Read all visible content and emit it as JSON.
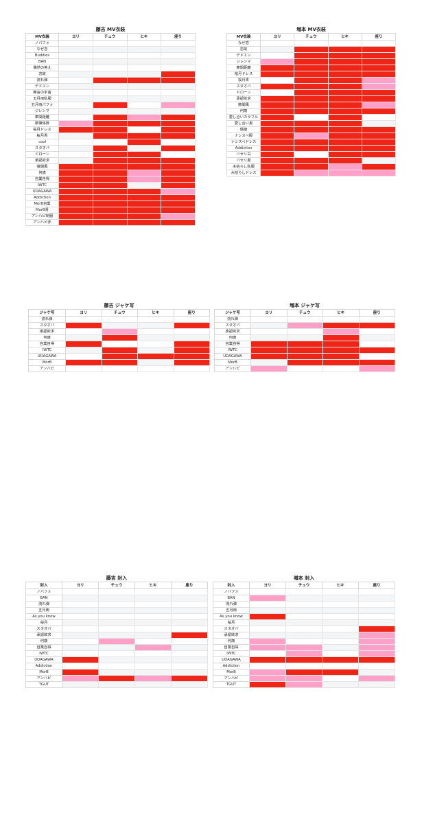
{
  "colors": {
    "none": "#ffffff",
    "stripe": "#f4f5f6",
    "light": "#ffa0c9",
    "strong": "#ee2517"
  },
  "tables": [
    {
      "title": "藤吉 MV衣装",
      "headers": [
        "MV衣装",
        "ヨリ",
        "チュウ",
        "ヒキ",
        "座り"
      ],
      "rows": [
        {
          "label": "ノバフォ",
          "cells": [
            0,
            0,
            0,
            0
          ]
        },
        {
          "label": "なぜ恋",
          "cells": [
            0,
            0,
            0,
            0
          ]
        },
        {
          "label": "Buddies",
          "cells": [
            0,
            0,
            0,
            0
          ]
        },
        {
          "label": "BAN",
          "cells": [
            0,
            0,
            0,
            0
          ]
        },
        {
          "label": "偶然の答え",
          "cells": [
            0,
            0,
            0,
            0
          ]
        },
        {
          "label": "恋故",
          "cells": [
            0,
            0,
            0,
            2
          ]
        },
        {
          "label": "流れ弾",
          "cells": [
            0,
            2,
            2,
            2
          ]
        },
        {
          "label": "デドエン",
          "cells": [
            0,
            0,
            0,
            0
          ]
        },
        {
          "label": "無言の宇宙",
          "cells": [
            0,
            0,
            0,
            0
          ]
        },
        {
          "label": "五月雨私服",
          "cells": [
            0,
            0,
            0,
            0
          ]
        },
        {
          "label": "五月雨パフォ",
          "cells": [
            0,
            2,
            0,
            1
          ]
        },
        {
          "label": "ジレンマ",
          "cells": [
            0,
            0,
            0,
            0
          ]
        },
        {
          "label": "車間距離",
          "cells": [
            0,
            2,
            1,
            2
          ]
        },
        {
          "label": "摩擦係数",
          "cells": [
            1,
            2,
            2,
            2
          ]
        },
        {
          "label": "桜月ドレス",
          "cells": [
            2,
            2,
            0,
            2
          ]
        },
        {
          "label": "桜月青",
          "cells": [
            0,
            2,
            2,
            2
          ]
        },
        {
          "label": "cool",
          "cells": [
            0,
            0,
            2,
            0
          ]
        },
        {
          "label": "スタオバ",
          "cells": [
            0,
            2,
            0,
            2
          ]
        },
        {
          "label": "ドローン",
          "cells": [
            0,
            2,
            2,
            0
          ]
        },
        {
          "label": "承認欲求",
          "cells": [
            0,
            2,
            2,
            2
          ]
        },
        {
          "label": "徹閣風",
          "cells": [
            2,
            2,
            2,
            2
          ]
        },
        {
          "label": "何歳",
          "cells": [
            2,
            2,
            1,
            2
          ]
        },
        {
          "label": "自業自得",
          "cells": [
            2,
            2,
            1,
            2
          ]
        },
        {
          "label": "IWTC",
          "cells": [
            2,
            2,
            0,
            2
          ]
        },
        {
          "label": "UDAGAWA",
          "cells": [
            2,
            2,
            2,
            1
          ]
        },
        {
          "label": "Addiction",
          "cells": [
            2,
            2,
            2,
            2
          ]
        },
        {
          "label": "MorB自業",
          "cells": [
            2,
            2,
            2,
            2
          ]
        },
        {
          "label": "MorB青",
          "cells": [
            2,
            2,
            2,
            2
          ]
        },
        {
          "label": "アンハピ制服",
          "cells": [
            2,
            2,
            2,
            1
          ]
        },
        {
          "label": "アンハピ赤",
          "cells": [
            2,
            2,
            2,
            2
          ]
        }
      ]
    },
    {
      "title": "増本 MV衣装",
      "headers": [
        "MV衣装",
        "ヨリ",
        "チュウ",
        "ヒキ",
        "座り"
      ],
      "rows": [
        {
          "label": "なぜ恋",
          "cells": [
            0,
            0,
            0,
            0
          ]
        },
        {
          "label": "恋故",
          "cells": [
            0,
            2,
            2,
            2
          ]
        },
        {
          "label": "デドエン",
          "cells": [
            0,
            2,
            2,
            2
          ]
        },
        {
          "label": "ジレンマ",
          "cells": [
            1,
            2,
            2,
            2
          ]
        },
        {
          "label": "車間距離",
          "cells": [
            2,
            2,
            2,
            2
          ]
        },
        {
          "label": "桜月ドレス",
          "cells": [
            2,
            2,
            2,
            2
          ]
        },
        {
          "label": "桜月青",
          "cells": [
            0,
            2,
            2,
            1
          ]
        },
        {
          "label": "スタオバ",
          "cells": [
            2,
            2,
            2,
            1
          ]
        },
        {
          "label": "ドローン",
          "cells": [
            0,
            2,
            2,
            2
          ]
        },
        {
          "label": "承認欲求",
          "cells": [
            2,
            2,
            2,
            2
          ]
        },
        {
          "label": "徹閣風",
          "cells": [
            2,
            2,
            2,
            1
          ]
        },
        {
          "label": "何歳",
          "cells": [
            2,
            2,
            2,
            2
          ]
        },
        {
          "label": "愛し合いカラフル",
          "cells": [
            2,
            0,
            2,
            0
          ]
        },
        {
          "label": "愛し合い黒",
          "cells": [
            2,
            2,
            2,
            0
          ]
        },
        {
          "label": "償値",
          "cells": [
            2,
            2,
            2,
            2
          ]
        },
        {
          "label": "ナシスペ服",
          "cells": [
            2,
            1,
            2,
            2
          ]
        },
        {
          "label": "ナシスペドレス",
          "cells": [
            2,
            2,
            2,
            2
          ]
        },
        {
          "label": "Addiction",
          "cells": [
            2,
            2,
            2,
            2
          ]
        },
        {
          "label": "バセリ白",
          "cells": [
            2,
            0,
            2,
            2
          ]
        },
        {
          "label": "バセリ黒",
          "cells": [
            2,
            2,
            2,
            0
          ]
        },
        {
          "label": "木枯らし私服",
          "cells": [
            2,
            2,
            1,
            2
          ]
        },
        {
          "label": "木枯らしドレス",
          "cells": [
            2,
            1,
            1,
            1
          ]
        }
      ]
    },
    {
      "title": "藤吉 ジャケ写",
      "headers": [
        "ジャケ写",
        "ヨリ",
        "チュウ",
        "ヒキ",
        "座り"
      ],
      "rows": [
        {
          "label": "流れ弾",
          "cells": [
            0,
            0,
            0,
            0
          ]
        },
        {
          "label": "スタオバ",
          "cells": [
            2,
            0,
            0,
            2
          ]
        },
        {
          "label": "承認欲求",
          "cells": [
            0,
            1,
            0,
            0
          ]
        },
        {
          "label": "何歳",
          "cells": [
            0,
            2,
            0,
            0
          ]
        },
        {
          "label": "自業自得",
          "cells": [
            2,
            0,
            0,
            2
          ]
        },
        {
          "label": "IWTC",
          "cells": [
            0,
            2,
            0,
            2
          ]
        },
        {
          "label": "UDAGAWA",
          "cells": [
            0,
            2,
            2,
            2
          ]
        },
        {
          "label": "MorB",
          "cells": [
            2,
            2,
            0,
            2
          ]
        },
        {
          "label": "アンハピ",
          "cells": [
            0,
            0,
            0,
            0
          ]
        }
      ]
    },
    {
      "title": "増本 ジャケ写",
      "headers": [
        "ジャケ写",
        "ヨリ",
        "チュウ",
        "ヒキ",
        "座り"
      ],
      "rows": [
        {
          "label": "流れ弾",
          "cells": [
            0,
            0,
            0,
            0
          ]
        },
        {
          "label": "スタオバ",
          "cells": [
            0,
            1,
            2,
            2
          ]
        },
        {
          "label": "承認欲求",
          "cells": [
            0,
            0,
            1,
            0
          ]
        },
        {
          "label": "何歳",
          "cells": [
            0,
            0,
            2,
            0
          ]
        },
        {
          "label": "自業自得",
          "cells": [
            2,
            2,
            2,
            0
          ]
        },
        {
          "label": "IWTC",
          "cells": [
            2,
            2,
            2,
            2
          ]
        },
        {
          "label": "UDAGAWA",
          "cells": [
            2,
            2,
            2,
            0
          ]
        },
        {
          "label": "MorB",
          "cells": [
            0,
            2,
            2,
            2
          ]
        },
        {
          "label": "アンハピ",
          "cells": [
            1,
            0,
            0,
            1
          ]
        }
      ]
    },
    {
      "title": "藤吉 封入",
      "headers": [
        "封入",
        "ヨリ",
        "チュウ",
        "ヒキ",
        "座り"
      ],
      "rows": [
        {
          "label": "ノバフォ",
          "cells": [
            0,
            0,
            0,
            0
          ]
        },
        {
          "label": "BAN",
          "cells": [
            0,
            0,
            0,
            0
          ]
        },
        {
          "label": "流れ弾",
          "cells": [
            0,
            0,
            0,
            0
          ]
        },
        {
          "label": "五月雨",
          "cells": [
            0,
            0,
            0,
            0
          ]
        },
        {
          "label": "As you know",
          "cells": [
            0,
            0,
            0,
            0
          ]
        },
        {
          "label": "桜月",
          "cells": [
            0,
            0,
            0,
            0
          ]
        },
        {
          "label": "スタオバ",
          "cells": [
            0,
            0,
            0,
            0
          ]
        },
        {
          "label": "承認欲求",
          "cells": [
            0,
            0,
            0,
            2
          ]
        },
        {
          "label": "何歳",
          "cells": [
            0,
            1,
            0,
            0
          ]
        },
        {
          "label": "自業自得",
          "cells": [
            0,
            0,
            1,
            0
          ]
        },
        {
          "label": "IWTC",
          "cells": [
            0,
            0,
            0,
            0
          ]
        },
        {
          "label": "UDAGAWA",
          "cells": [
            2,
            0,
            0,
            0
          ]
        },
        {
          "label": "Addiction",
          "cells": [
            0,
            0,
            0,
            0
          ]
        },
        {
          "label": "MorB",
          "cells": [
            2,
            0,
            0,
            0
          ]
        },
        {
          "label": "アンハピ",
          "cells": [
            1,
            2,
            1,
            2
          ]
        },
        {
          "label": "TGUT",
          "cells": [
            0,
            0,
            0,
            0
          ]
        }
      ]
    },
    {
      "title": "増本 封入",
      "headers": [
        "封入",
        "ヨリ",
        "チュウ",
        "ヒキ",
        "座り"
      ],
      "rows": [
        {
          "label": "ノバフォ",
          "cells": [
            0,
            0,
            0,
            0
          ]
        },
        {
          "label": "BAN",
          "cells": [
            1,
            0,
            0,
            0
          ]
        },
        {
          "label": "流れ弾",
          "cells": [
            0,
            0,
            0,
            0
          ]
        },
        {
          "label": "五月雨",
          "cells": [
            0,
            0,
            0,
            0
          ]
        },
        {
          "label": "As you know",
          "cells": [
            2,
            0,
            0,
            0
          ]
        },
        {
          "label": "桜月",
          "cells": [
            0,
            0,
            0,
            0
          ]
        },
        {
          "label": "スタオバ",
          "cells": [
            0,
            0,
            0,
            2
          ]
        },
        {
          "label": "承認欲求",
          "cells": [
            0,
            0,
            0,
            1
          ]
        },
        {
          "label": "何歳",
          "cells": [
            1,
            0,
            0,
            1
          ]
        },
        {
          "label": "自業自得",
          "cells": [
            1,
            1,
            0,
            1
          ]
        },
        {
          "label": "IWTC",
          "cells": [
            0,
            1,
            0,
            1
          ]
        },
        {
          "label": "UDAGAWA",
          "cells": [
            2,
            2,
            2,
            2
          ]
        },
        {
          "label": "Addiction",
          "cells": [
            0,
            0,
            0,
            0
          ]
        },
        {
          "label": "MorB",
          "cells": [
            1,
            2,
            2,
            0
          ]
        },
        {
          "label": "アンハピ",
          "cells": [
            1,
            1,
            0,
            1
          ]
        },
        {
          "label": "TGUT",
          "cells": [
            2,
            1,
            0,
            0
          ]
        }
      ]
    }
  ]
}
